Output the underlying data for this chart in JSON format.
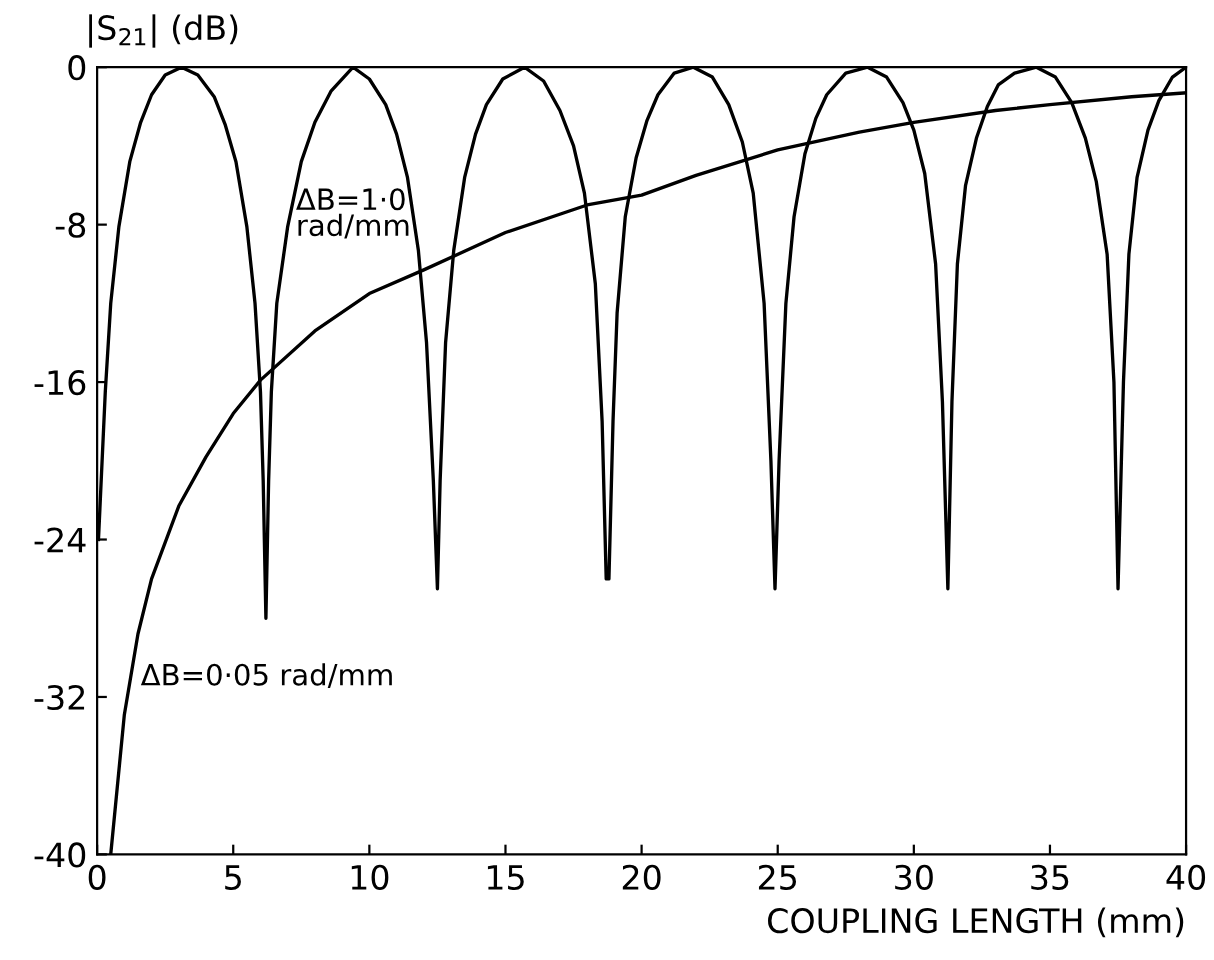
{
  "chart_data": {
    "type": "line",
    "xlabel": "COUPLING LENGTH (mm)",
    "ylabel": "|S$_{21}$| (dB)",
    "xlim": [
      0,
      40
    ],
    "ylim": [
      -40,
      0
    ],
    "xticks": [
      0,
      5,
      10,
      15,
      20,
      25,
      30,
      35,
      40
    ],
    "yticks": [
      0,
      -8,
      -16,
      -24,
      -32,
      -40
    ],
    "grid": false,
    "legend": false,
    "marker": "none",
    "line_style": "solid",
    "series": [
      {
        "color": "#000000",
        "x": [
          0.05,
          0.3,
          0.5,
          0.8,
          1.2,
          1.6,
          2.0,
          2.5,
          3.1,
          3.7,
          4.3,
          4.7,
          5.1,
          5.5,
          5.8,
          6.0,
          6.1,
          6.2,
          6.3,
          6.4,
          6.6,
          7.0,
          7.5,
          8.0,
          8.6,
          9.4,
          10.0,
          10.6,
          11.0,
          11.4,
          11.8,
          12.1,
          12.35,
          12.5,
          12.6,
          12.8,
          13.1,
          13.5,
          13.9,
          14.3,
          14.9,
          15.7,
          16.4,
          17.0,
          17.5,
          17.9,
          18.3,
          18.55,
          18.7,
          18.8,
          18.95,
          19.1,
          19.4,
          19.8,
          20.2,
          20.6,
          21.2,
          21.9,
          22.6,
          23.2,
          23.7,
          24.1,
          24.5,
          24.75,
          24.9,
          25.05,
          25.3,
          25.6,
          26.0,
          26.4,
          26.8,
          27.5,
          28.3,
          29.0,
          29.6,
          30.0,
          30.4,
          30.8,
          31.05,
          31.25,
          31.4,
          31.6,
          31.9,
          32.3,
          32.7,
          33.1,
          33.7,
          34.5,
          35.2,
          35.8,
          36.3,
          36.7,
          37.1,
          37.35,
          37.5,
          37.7,
          37.9,
          38.2,
          38.6,
          39.0,
          39.5,
          40.0
        ],
        "values": [
          -24,
          -16.5,
          -12,
          -8.1,
          -4.8,
          -2.8,
          -1.4,
          -0.4,
          0,
          -0.4,
          -1.5,
          -2.9,
          -4.8,
          -8.1,
          -12,
          -16.5,
          -21,
          -28,
          -21,
          -16.5,
          -12,
          -8.1,
          -4.8,
          -2.8,
          -1.2,
          0,
          -0.6,
          -1.9,
          -3.4,
          -5.6,
          -9.3,
          -14,
          -21,
          -26.5,
          -21,
          -14,
          -9.3,
          -5.6,
          -3.4,
          -1.9,
          -0.6,
          0,
          -0.7,
          -2.2,
          -4.0,
          -6.4,
          -11,
          -18,
          -26,
          -26,
          -18,
          -12.5,
          -7.6,
          -4.6,
          -2.7,
          -1.4,
          -0.3,
          0,
          -0.5,
          -1.9,
          -3.8,
          -6.4,
          -12,
          -20,
          -26.5,
          -20,
          -12,
          -7.6,
          -4.4,
          -2.6,
          -1.4,
          -0.3,
          0,
          -0.5,
          -1.8,
          -3.2,
          -5.4,
          -10,
          -17,
          -26.5,
          -17,
          -10,
          -6.0,
          -3.6,
          -2.0,
          -0.9,
          -0.3,
          0,
          -0.5,
          -1.8,
          -3.6,
          -5.8,
          -9.5,
          -16,
          -26.5,
          -16,
          -9.5,
          -5.6,
          -3.2,
          -1.7,
          -0.5,
          0
        ]
      },
      {
        "color": "#000000",
        "x": [
          0.5,
          1,
          1.5,
          2,
          3,
          4,
          5,
          6,
          8,
          10,
          12,
          15,
          18,
          20,
          22,
          25,
          28,
          30,
          33,
          35,
          38,
          40
        ],
        "values": [
          -40,
          -32.9,
          -28.8,
          -26,
          -22.3,
          -19.8,
          -17.6,
          -15.9,
          -13.4,
          -11.5,
          -10.3,
          -8.4,
          -7,
          -6.5,
          -5.5,
          -4.2,
          -3.3,
          -2.8,
          -2.2,
          -1.9,
          -1.5,
          -1.3
        ]
      }
    ],
    "annotations": [
      {
        "text": "ΔB=1·0\nrad/mm",
        "x": 7.3,
        "y": -7.5
      },
      {
        "text": "ΔB=0·05 rad/mm",
        "x": 1.6,
        "y": -31
      }
    ]
  }
}
